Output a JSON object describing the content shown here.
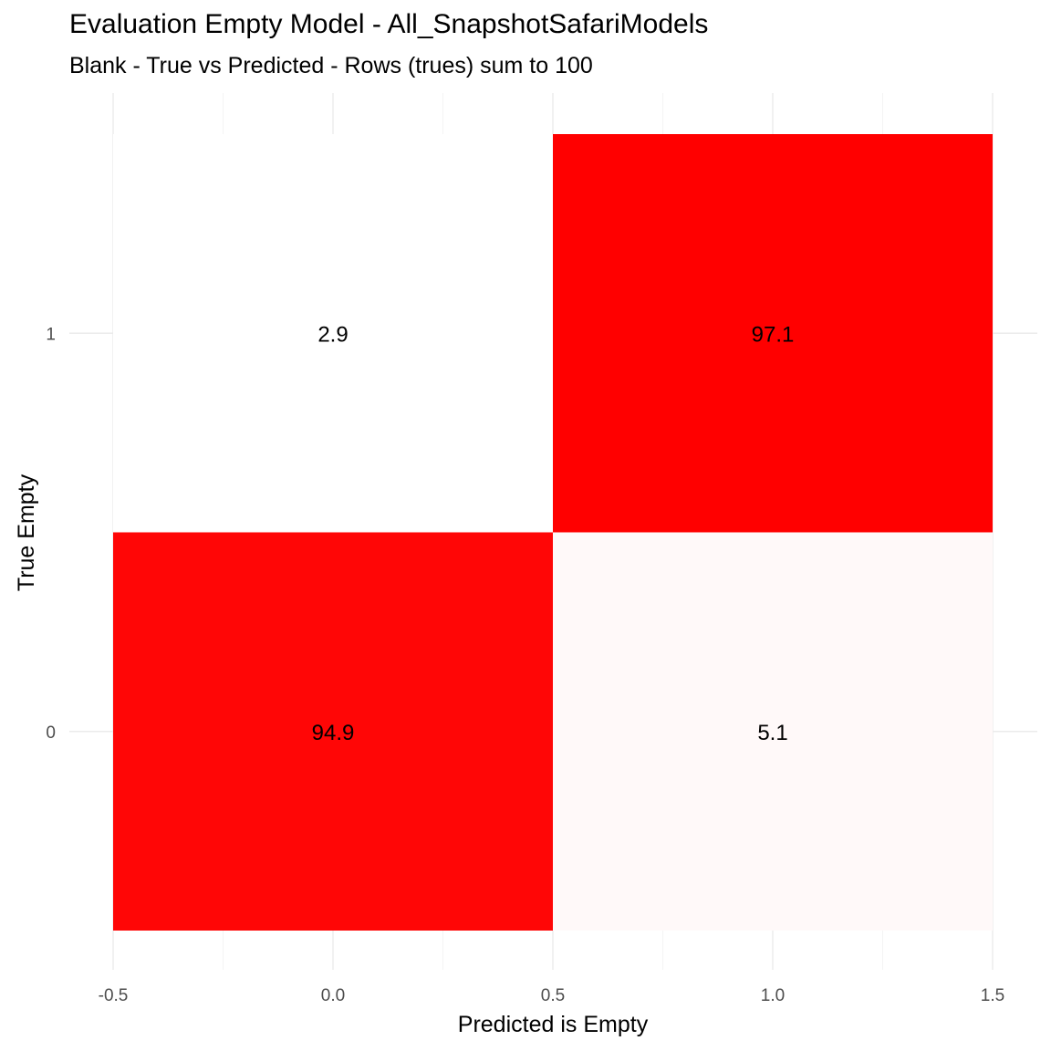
{
  "chart_data": {
    "type": "heatmap",
    "title": "Evaluation Empty Model - All_SnapshotSafariModels",
    "subtitle": "Blank - True vs Predicted - Rows (trues) sum to 100",
    "xlabel": "Predicted is Empty",
    "ylabel": "True Empty",
    "xlim": [
      -0.5,
      1.5
    ],
    "ylim": [
      -0.5,
      1.5
    ],
    "x_ticks": [
      "-0.5",
      "0.0",
      "0.5",
      "1.0",
      "1.5"
    ],
    "y_ticks": [
      "0",
      "1"
    ],
    "grid": true,
    "color_low": "#ffffff",
    "color_high": "#ff0000",
    "cells": [
      {
        "x": 0,
        "y": 1,
        "value": 2.9,
        "label": "2.9"
      },
      {
        "x": 1,
        "y": 1,
        "value": 97.1,
        "label": "97.1"
      },
      {
        "x": 0,
        "y": 0,
        "value": 94.9,
        "label": "94.9"
      },
      {
        "x": 1,
        "y": 0,
        "value": 5.1,
        "label": "5.1"
      }
    ]
  }
}
